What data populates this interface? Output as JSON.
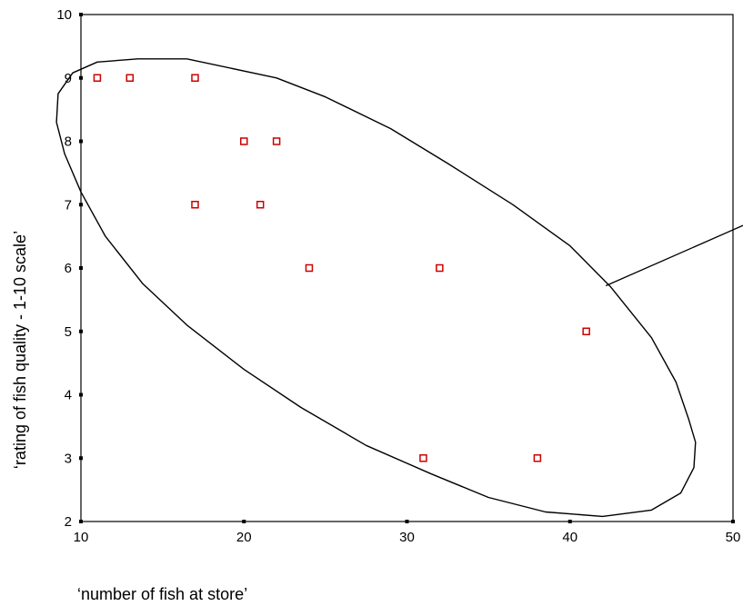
{
  "chart_data": {
    "type": "scatter",
    "xlabel": "‘number of fish at store’",
    "ylabel": "‘rating of fish quality - 1-10 scale’",
    "xlim": [
      10,
      50
    ],
    "ylim": [
      2,
      10
    ],
    "x_ticks": [
      "10",
      "20",
      "30",
      "40",
      "50"
    ],
    "y_ticks": [
      "2",
      "3",
      "4",
      "5",
      "6",
      "7",
      "8",
      "9",
      "10"
    ],
    "grid": false,
    "legend": "none",
    "marker_color": "#cc0000",
    "ellipse_color": "#000000",
    "points": [
      {
        "x": 11,
        "y": 9
      },
      {
        "x": 13,
        "y": 9
      },
      {
        "x": 17,
        "y": 9
      },
      {
        "x": 20,
        "y": 8
      },
      {
        "x": 22,
        "y": 8
      },
      {
        "x": 17,
        "y": 7
      },
      {
        "x": 21,
        "y": 7
      },
      {
        "x": 24,
        "y": 6
      },
      {
        "x": 32,
        "y": 6
      },
      {
        "x": 41,
        "y": 5
      },
      {
        "x": 31,
        "y": 3
      },
      {
        "x": 38,
        "y": 3
      }
    ],
    "ellipse_outline": [
      {
        "x": 16.5,
        "y": 9.3
      },
      {
        "x": 22,
        "y": 9.0
      },
      {
        "x": 25,
        "y": 8.7
      },
      {
        "x": 29,
        "y": 8.2
      },
      {
        "x": 32.5,
        "y": 7.65
      },
      {
        "x": 36.5,
        "y": 7.0
      },
      {
        "x": 40,
        "y": 6.35
      },
      {
        "x": 42.5,
        "y": 5.7
      },
      {
        "x": 45,
        "y": 4.9
      },
      {
        "x": 46.5,
        "y": 4.2
      },
      {
        "x": 47.3,
        "y": 3.6
      },
      {
        "x": 47.7,
        "y": 3.25
      },
      {
        "x": 47.6,
        "y": 2.85
      },
      {
        "x": 46.8,
        "y": 2.45
      },
      {
        "x": 45.0,
        "y": 2.18
      },
      {
        "x": 42.0,
        "y": 2.08
      },
      {
        "x": 38.5,
        "y": 2.15
      },
      {
        "x": 35.0,
        "y": 2.38
      },
      {
        "x": 31.5,
        "y": 2.75
      },
      {
        "x": 27.5,
        "y": 3.2
      },
      {
        "x": 23.5,
        "y": 3.8
      },
      {
        "x": 20.0,
        "y": 4.4
      },
      {
        "x": 16.5,
        "y": 5.1
      },
      {
        "x": 13.8,
        "y": 5.75
      },
      {
        "x": 11.5,
        "y": 6.5
      },
      {
        "x": 10.0,
        "y": 7.2
      },
      {
        "x": 9.0,
        "y": 7.8
      },
      {
        "x": 8.5,
        "y": 8.3
      },
      {
        "x": 8.6,
        "y": 8.75
      },
      {
        "x": 9.5,
        "y": 9.08
      },
      {
        "x": 11.0,
        "y": 9.25
      },
      {
        "x": 13.5,
        "y": 9.3
      },
      {
        "x": 16.5,
        "y": 9.3
      }
    ],
    "annotation_line": [
      {
        "x": 42.2,
        "y": 5.72
      },
      {
        "x": 50,
        "y": 6.6
      }
    ]
  }
}
